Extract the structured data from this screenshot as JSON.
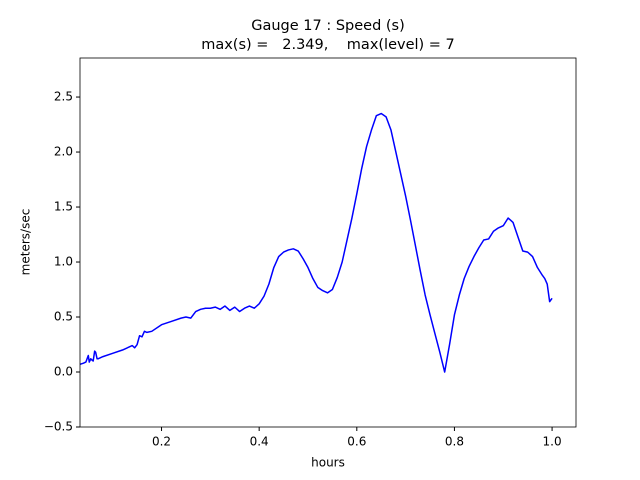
{
  "chart_data": {
    "type": "line",
    "title": "Gauge 17 : Speed (s)",
    "subtitle": "max(s) =   2.349,    max(level) = 7",
    "x_label": "hours",
    "y_label": "meters/sec",
    "xlim": [
      0.033,
      1.049
    ],
    "ylim": [
      -0.5,
      2.855
    ],
    "xticks": [
      0.2,
      0.4,
      0.6,
      0.8,
      {
        "value": 1.0,
        "label": "1.0"
      }
    ],
    "yticks": [
      {
        "value": -0.5,
        "label": "−0.5"
      },
      {
        "value": 0.0,
        "label": "0.0"
      },
      0.5,
      {
        "value": 1.0,
        "label": "1.0"
      },
      1.5,
      {
        "value": 2.0,
        "label": "2.0"
      },
      2.5
    ],
    "series": [
      {
        "color": "#0000ff",
        "x": [
          0.033,
          0.04,
          0.045,
          0.05,
          0.052,
          0.055,
          0.06,
          0.063,
          0.065,
          0.068,
          0.07,
          0.08,
          0.1,
          0.12,
          0.14,
          0.145,
          0.15,
          0.155,
          0.16,
          0.165,
          0.17,
          0.18,
          0.2,
          0.22,
          0.24,
          0.25,
          0.26,
          0.27,
          0.28,
          0.29,
          0.3,
          0.31,
          0.32,
          0.33,
          0.34,
          0.35,
          0.36,
          0.37,
          0.38,
          0.39,
          0.4,
          0.41,
          0.42,
          0.43,
          0.44,
          0.45,
          0.46,
          0.47,
          0.48,
          0.49,
          0.5,
          0.51,
          0.52,
          0.53,
          0.54,
          0.55,
          0.56,
          0.57,
          0.58,
          0.59,
          0.6,
          0.61,
          0.62,
          0.63,
          0.64,
          0.65,
          0.66,
          0.67,
          0.68,
          0.69,
          0.7,
          0.71,
          0.72,
          0.73,
          0.74,
          0.75,
          0.76,
          0.77,
          0.78,
          0.79,
          0.8,
          0.81,
          0.82,
          0.83,
          0.84,
          0.85,
          0.86,
          0.87,
          0.88,
          0.89,
          0.9,
          0.91,
          0.915,
          0.92,
          0.93,
          0.94,
          0.95,
          0.96,
          0.97,
          0.98,
          0.985,
          0.99,
          0.995,
          1.0
        ],
        "values": [
          0.07,
          0.08,
          0.09,
          0.15,
          0.09,
          0.12,
          0.1,
          0.19,
          0.18,
          0.12,
          0.12,
          0.14,
          0.17,
          0.2,
          0.24,
          0.22,
          0.25,
          0.33,
          0.32,
          0.37,
          0.36,
          0.37,
          0.43,
          0.46,
          0.49,
          0.5,
          0.49,
          0.55,
          0.57,
          0.58,
          0.58,
          0.59,
          0.57,
          0.6,
          0.56,
          0.59,
          0.55,
          0.58,
          0.6,
          0.58,
          0.62,
          0.69,
          0.8,
          0.95,
          1.05,
          1.09,
          1.11,
          1.12,
          1.1,
          1.03,
          0.95,
          0.85,
          0.77,
          0.74,
          0.72,
          0.75,
          0.86,
          1.0,
          1.2,
          1.4,
          1.62,
          1.85,
          2.05,
          2.2,
          2.33,
          2.35,
          2.32,
          2.2,
          2.0,
          1.8,
          1.6,
          1.38,
          1.15,
          0.92,
          0.7,
          0.52,
          0.35,
          0.18,
          0.0,
          0.25,
          0.52,
          0.7,
          0.85,
          0.96,
          1.05,
          1.13,
          1.2,
          1.21,
          1.28,
          1.31,
          1.33,
          1.4,
          1.38,
          1.36,
          1.23,
          1.1,
          1.09,
          1.05,
          0.95,
          0.88,
          0.85,
          0.8,
          0.64,
          0.67
        ]
      }
    ]
  }
}
